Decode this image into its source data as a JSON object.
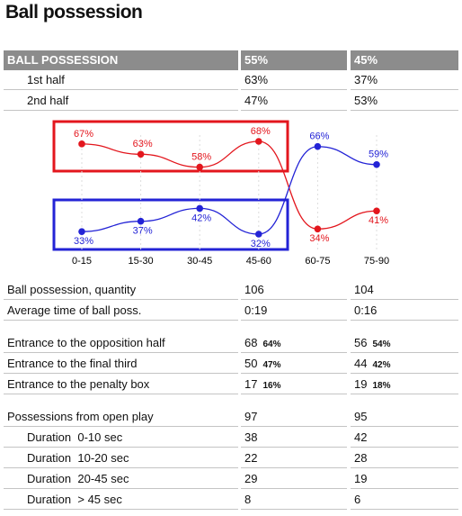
{
  "title": "Ball possession",
  "header": [
    "BALL POSSESSION",
    "55%",
    "45%"
  ],
  "halves": [
    [
      "1st half",
      "63%",
      "37%"
    ],
    [
      "2nd half",
      "47%",
      "53%"
    ]
  ],
  "chart": {
    "type": "line",
    "categories": [
      "0-15",
      "15-30",
      "30-45",
      "45-60",
      "60-75",
      "75-90"
    ],
    "series": [
      {
        "color": "#e3161d",
        "values": [
          67,
          63,
          58,
          68,
          34,
          41
        ],
        "value_labels": [
          "67%",
          "63%",
          "58%",
          "68%",
          "34%",
          "41%"
        ]
      },
      {
        "color": "#2323d6",
        "values": [
          33,
          37,
          42,
          32,
          66,
          59
        ],
        "value_labels": [
          "33%",
          "37%",
          "42%",
          "32%",
          "66%",
          "59%"
        ]
      }
    ]
  },
  "quantity": [
    [
      "Ball possession, quantity",
      "106",
      "104"
    ],
    [
      "Average time of ball poss.",
      "0:19",
      "0:16"
    ]
  ],
  "entrances": [
    [
      "Entrance to the opposition half",
      "68",
      "64%",
      "56",
      "54%"
    ],
    [
      "Entrance to the final third",
      "50",
      "47%",
      "44",
      "42%"
    ],
    [
      "Entrance to the penalty box",
      "17",
      "16%",
      "19",
      "18%"
    ]
  ],
  "open_play": [
    [
      "Possessions from open play",
      "97",
      "95"
    ],
    [
      "Duration  0-10 sec",
      "38",
      "42"
    ],
    [
      "Duration  10-20 sec",
      "22",
      "28"
    ],
    [
      "Duration  20-45 sec",
      "29",
      "19"
    ],
    [
      "Duration  > 45 sec",
      "8",
      "6"
    ]
  ]
}
